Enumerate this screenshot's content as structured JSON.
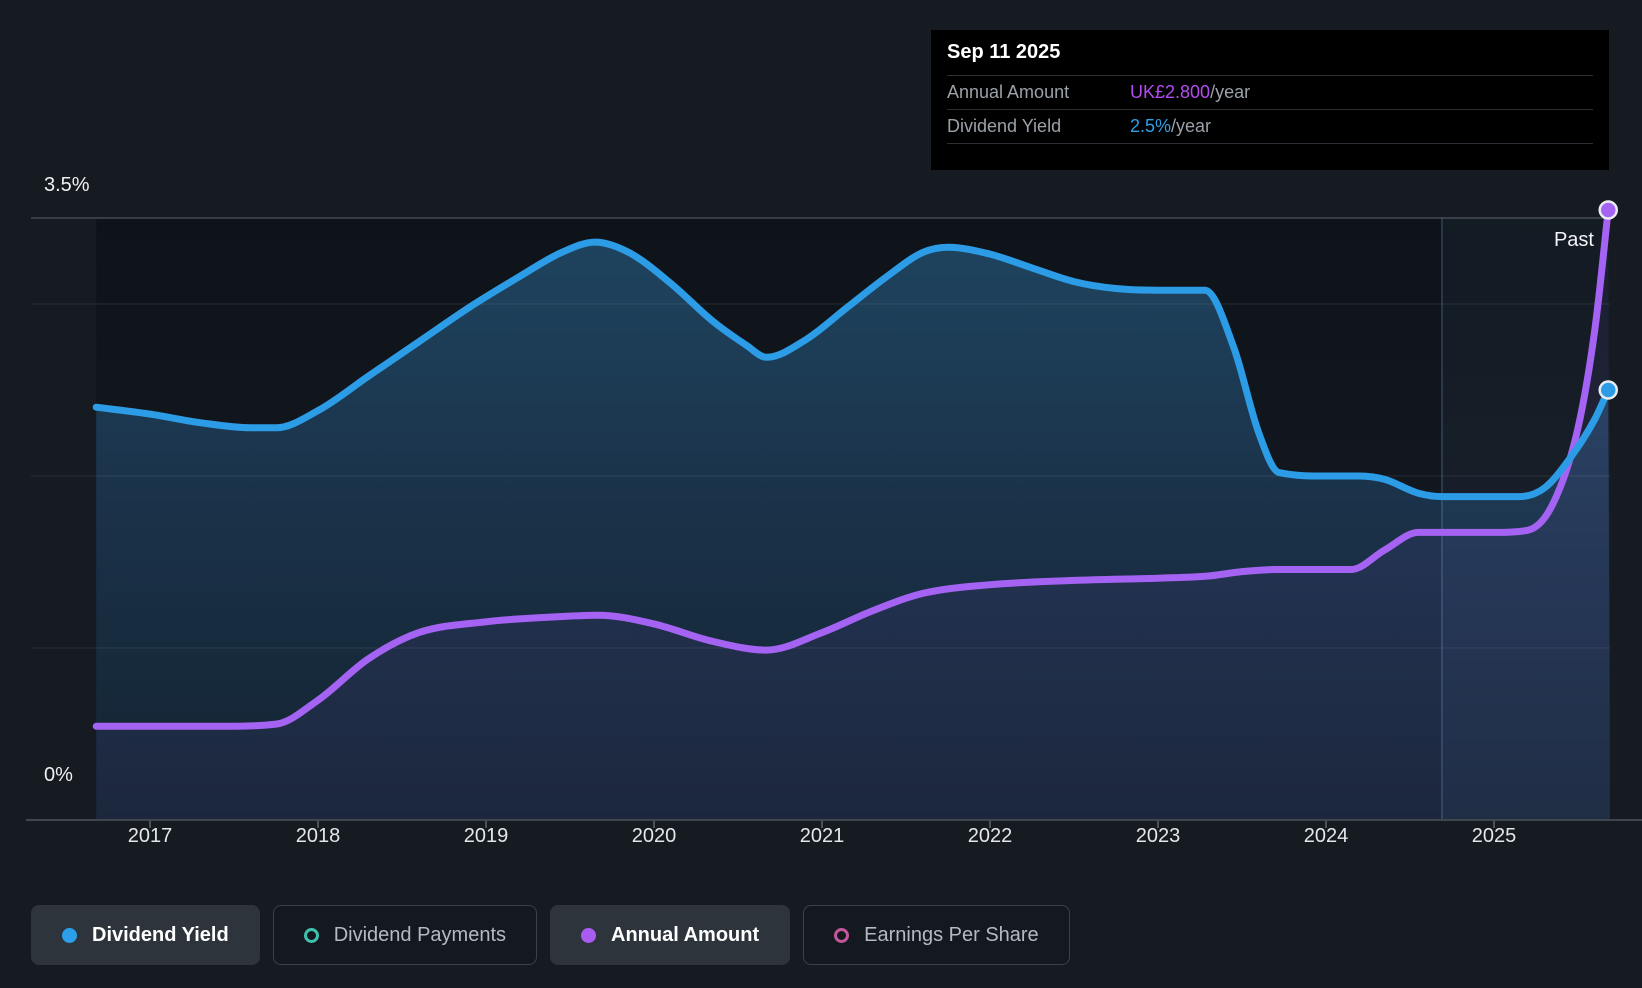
{
  "tooltip": {
    "date": "Sep 11 2025",
    "rows": [
      {
        "label": "Annual Amount",
        "value": "UK£2.800",
        "suffix": "/year",
        "color": "#b44bf0"
      },
      {
        "label": "Dividend Yield",
        "value": "2.5%",
        "suffix": "/year",
        "color": "#2da0e8"
      }
    ]
  },
  "axis": {
    "y_top_label": "3.5%",
    "y_bottom_label": "0%",
    "past_label": "Past"
  },
  "legend": [
    {
      "label": "Dividend Yield",
      "marker": "dot",
      "color": "#2b9fe8",
      "active": true
    },
    {
      "label": "Dividend Payments",
      "marker": "ring",
      "color": "#3fc1ad",
      "active": false
    },
    {
      "label": "Annual Amount",
      "marker": "dot",
      "color": "#a85cf0",
      "active": true
    },
    {
      "label": "Earnings Per Share",
      "marker": "ring",
      "color": "#c2579c",
      "active": false
    }
  ],
  "colors": {
    "background": "#161a21",
    "plot_top": "#0e1319",
    "plot_bottom": "#171d26",
    "blue_line": "#2b9ce5",
    "purple_line": "#a463f2",
    "fill_top": "#1f4560",
    "fill_mid": "#1a3148",
    "fill_bottom": "#132330",
    "gridline": "rgba(255,255,255,0.09)",
    "gridline_top": "#454b52",
    "axis_line": "#3f464e",
    "tick": "#4a5159",
    "past_band": "rgba(125,175,230,0.05)",
    "past_divider": "rgba(125,175,230,0.28)",
    "dot_stroke": "#e8ecf2"
  },
  "chart_data": {
    "type": "area",
    "x_axis": {
      "tick_labels": [
        "2017",
        "2018",
        "2019",
        "2020",
        "2021",
        "2022",
        "2023",
        "2024",
        "2025"
      ],
      "tick_values": [
        2017,
        2018,
        2019,
        2020,
        2021,
        2022,
        2023,
        2024,
        2025
      ],
      "range": [
        2016.68,
        2025.68
      ]
    },
    "y_axis_left": {
      "unit": "%",
      "range": [
        0,
        3.5
      ],
      "labeled_ticks": [
        {
          "label": "3.5%",
          "value": 3.5
        },
        {
          "label": "0%",
          "value": 0
        }
      ],
      "gridlines": [
        1,
        2,
        3,
        3.5
      ]
    },
    "y_axis_right": {
      "unit": "UK£/year",
      "range": [
        0,
        2.8
      ],
      "visible": false
    },
    "past_divider_x": 2024.69,
    "annotations": [
      {
        "text": "Past",
        "x": 2025.4,
        "y": 3.4
      }
    ],
    "legend_position": "bottom",
    "series": [
      {
        "name": "Dividend Yield",
        "axis": "left",
        "unit": "%",
        "color": "#2b9ce5",
        "area_fill": true,
        "points": [
          [
            2016.68,
            2.4
          ],
          [
            2017.0,
            2.36
          ],
          [
            2017.3,
            2.31
          ],
          [
            2017.6,
            2.28
          ],
          [
            2017.75,
            2.28
          ],
          [
            2018.0,
            2.38
          ],
          [
            2018.3,
            2.58
          ],
          [
            2018.6,
            2.78
          ],
          [
            2018.9,
            2.98
          ],
          [
            2019.2,
            3.16
          ],
          [
            2019.45,
            3.3
          ],
          [
            2019.65,
            3.36
          ],
          [
            2019.85,
            3.3
          ],
          [
            2020.1,
            3.12
          ],
          [
            2020.35,
            2.9
          ],
          [
            2020.55,
            2.76
          ],
          [
            2020.67,
            2.69
          ],
          [
            2020.9,
            2.79
          ],
          [
            2021.15,
            2.98
          ],
          [
            2021.4,
            3.17
          ],
          [
            2021.6,
            3.3
          ],
          [
            2021.75,
            3.33
          ],
          [
            2022.0,
            3.29
          ],
          [
            2022.25,
            3.21
          ],
          [
            2022.5,
            3.13
          ],
          [
            2022.75,
            3.09
          ],
          [
            2023.0,
            3.08
          ],
          [
            2023.28,
            3.08
          ],
          [
            2023.45,
            2.75
          ],
          [
            2023.6,
            2.25
          ],
          [
            2023.72,
            2.02
          ],
          [
            2024.0,
            2.0
          ],
          [
            2024.2,
            2.0
          ],
          [
            2024.35,
            1.98
          ],
          [
            2024.55,
            1.9
          ],
          [
            2024.7,
            1.88
          ],
          [
            2025.0,
            1.88
          ],
          [
            2025.15,
            1.88
          ],
          [
            2025.3,
            1.93
          ],
          [
            2025.45,
            2.1
          ],
          [
            2025.6,
            2.33
          ],
          [
            2025.68,
            2.5
          ]
        ]
      },
      {
        "name": "Annual Amount",
        "axis": "right",
        "unit": "UK£",
        "color": "#a463f2",
        "area_fill": false,
        "points": [
          [
            2016.68,
            0.43
          ],
          [
            2017.0,
            0.43
          ],
          [
            2017.4,
            0.43
          ],
          [
            2017.75,
            0.44
          ],
          [
            2018.0,
            0.55
          ],
          [
            2018.3,
            0.74
          ],
          [
            2018.6,
            0.86
          ],
          [
            2019.0,
            0.91
          ],
          [
            2019.35,
            0.93
          ],
          [
            2019.67,
            0.94
          ],
          [
            2020.0,
            0.9
          ],
          [
            2020.35,
            0.82
          ],
          [
            2020.67,
            0.78
          ],
          [
            2021.0,
            0.86
          ],
          [
            2021.3,
            0.96
          ],
          [
            2021.6,
            1.04
          ],
          [
            2022.0,
            1.08
          ],
          [
            2022.5,
            1.1
          ],
          [
            2023.0,
            1.11
          ],
          [
            2023.3,
            1.12
          ],
          [
            2023.5,
            1.14
          ],
          [
            2023.7,
            1.15
          ],
          [
            2024.0,
            1.15
          ],
          [
            2024.15,
            1.15
          ],
          [
            2024.35,
            1.24
          ],
          [
            2024.55,
            1.32
          ],
          [
            2024.8,
            1.32
          ],
          [
            2025.0,
            1.32
          ],
          [
            2025.2,
            1.33
          ],
          [
            2025.35,
            1.45
          ],
          [
            2025.5,
            1.8
          ],
          [
            2025.6,
            2.25
          ],
          [
            2025.68,
            2.8
          ]
        ]
      }
    ]
  }
}
